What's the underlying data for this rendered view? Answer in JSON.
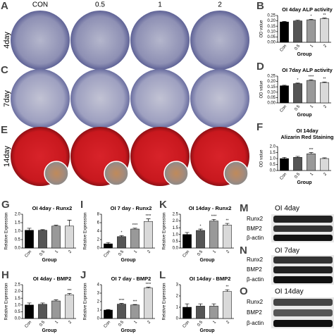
{
  "figure": {
    "letters": [
      "A",
      "C",
      "E",
      "M",
      "N",
      "O"
    ],
    "columns": [
      "CON",
      "0.5",
      "1",
      "2"
    ],
    "rows": [
      "4day",
      "7day",
      "14day"
    ]
  },
  "blots": [
    {
      "title": "OI  4day",
      "bands": [
        "Runx2",
        "BMP2",
        "β-actin"
      ]
    },
    {
      "title": "OI  7day",
      "bands": [
        "Runx2",
        "BMP2",
        "β-actin"
      ]
    },
    {
      "title": "OI  14day",
      "bands": [
        "Runx2",
        "BMP2",
        "β-actin"
      ]
    }
  ],
  "chart_data": [
    {
      "type": "bar",
      "panel": "B",
      "title": "OI 4day ALP activity",
      "ylabel": "OD value",
      "xlabel": "Group",
      "categories": [
        "Con",
        "0.5",
        "1",
        "2"
      ],
      "values": [
        0.19,
        0.2,
        0.21,
        0.22
      ],
      "errors": [
        0.005,
        0.006,
        0.005,
        0.006
      ],
      "significance": [
        null,
        null,
        "*",
        "**"
      ],
      "colors": [
        "#000000",
        "#555555",
        "#999999",
        "#d9d9d9"
      ],
      "ylim": [
        0,
        0.25
      ],
      "yticks": [
        {
          "value": 0,
          "label": "0.00"
        },
        {
          "value": 0.05,
          "label": "0.05"
        },
        {
          "value": 0.1,
          "label": "0.10"
        },
        {
          "value": 0.15,
          "label": "0.15"
        },
        {
          "value": 0.2,
          "label": "0.20"
        },
        {
          "value": 0.25,
          "label": "0.25"
        }
      ]
    },
    {
      "type": "bar",
      "panel": "D",
      "title": "OI 7day ALP activity",
      "ylabel": "OD value",
      "xlabel": "Group",
      "categories": [
        "Con",
        "0.5",
        "1",
        "2"
      ],
      "values": [
        0.16,
        0.18,
        0.21,
        0.19
      ],
      "errors": [
        0.005,
        0.005,
        0.006,
        0.005
      ],
      "significance": [
        null,
        "*",
        "****",
        "**"
      ],
      "colors": [
        "#000000",
        "#555555",
        "#999999",
        "#d9d9d9"
      ],
      "ylim": [
        0,
        0.25
      ],
      "yticks": [
        {
          "value": 0,
          "label": "0.00"
        },
        {
          "value": 0.05,
          "label": "0.05"
        },
        {
          "value": 0.1,
          "label": "0.10"
        },
        {
          "value": 0.15,
          "label": "0.15"
        },
        {
          "value": 0.2,
          "label": "0.20"
        },
        {
          "value": 0.25,
          "label": "0.25"
        }
      ]
    },
    {
      "type": "bar",
      "panel": "F",
      "title": "OI 14day",
      "subtitle": "Alizarin Red Staining",
      "ylabel": "OD value",
      "xlabel": "Group",
      "categories": [
        "Con",
        "0.5",
        "1",
        "2"
      ],
      "values": [
        1.0,
        1.1,
        1.4,
        1.0
      ],
      "errors": [
        0.1,
        0.08,
        0.1,
        0.06
      ],
      "significance": [
        null,
        null,
        "***",
        null
      ],
      "colors": [
        "#000000",
        "#555555",
        "#999999",
        "#d9d9d9"
      ],
      "ylim": [
        0,
        2
      ],
      "yticks": [
        {
          "value": 0,
          "label": "0.0"
        },
        {
          "value": 0.5,
          "label": "0.5"
        },
        {
          "value": 1,
          "label": "1.0"
        },
        {
          "value": 1.5,
          "label": "1.5"
        },
        {
          "value": 2,
          "label": "2.0"
        }
      ]
    },
    {
      "type": "bar",
      "panel": "G",
      "title": "OI 4day - Runx2",
      "ylabel": "Relative Expression",
      "xlabel": "Group",
      "categories": [
        "Con",
        "0.5",
        "1",
        "2"
      ],
      "values": [
        1.05,
        1.05,
        1.3,
        1.3
      ],
      "errors": [
        0.12,
        0.04,
        0.05,
        0.35
      ],
      "significance": [
        null,
        null,
        null,
        null
      ],
      "colors": [
        "#000000",
        "#555555",
        "#999999",
        "#d9d9d9"
      ],
      "ylim": [
        0,
        2
      ],
      "yticks": [
        {
          "value": 0,
          "label": "0.0"
        },
        {
          "value": 0.5,
          "label": "0.5"
        },
        {
          "value": 1,
          "label": "1.0"
        },
        {
          "value": 1.5,
          "label": "1.5"
        },
        {
          "value": 2,
          "label": "2.0"
        }
      ]
    },
    {
      "type": "bar",
      "panel": "I",
      "title": "OI 7 day - Runx2",
      "ylabel": "Relative Expression",
      "xlabel": "Group",
      "categories": [
        "Con",
        "0.5",
        "1",
        "2"
      ],
      "values": [
        1.0,
        2.7,
        4.5,
        6.3
      ],
      "errors": [
        0.3,
        0.25,
        0.2,
        0.6
      ],
      "significance": [
        null,
        "*",
        "****",
        "****"
      ],
      "colors": [
        "#000000",
        "#555555",
        "#999999",
        "#d9d9d9"
      ],
      "ylim": [
        0,
        8
      ],
      "yticks": [
        0,
        2,
        4,
        6,
        8
      ]
    },
    {
      "type": "bar",
      "panel": "K",
      "title": "OI 14day - Runx2",
      "ylabel": "Relative Expression",
      "xlabel": "Group",
      "categories": [
        "Con",
        "0.5",
        "1",
        "2"
      ],
      "values": [
        1.0,
        1.3,
        2.0,
        1.7
      ],
      "errors": [
        0.15,
        0.1,
        0.12,
        0.12
      ],
      "significance": [
        null,
        "*",
        "****",
        "**"
      ],
      "colors": [
        "#000000",
        "#555555",
        "#999999",
        "#d9d9d9"
      ],
      "ylim": [
        0,
        2.5
      ],
      "yticks": [
        {
          "value": 0,
          "label": "0.0"
        },
        {
          "value": 0.5,
          "label": "0.5"
        },
        {
          "value": 1,
          "label": "1.0"
        },
        {
          "value": 1.5,
          "label": "1.5"
        },
        {
          "value": 2,
          "label": "2.0"
        },
        {
          "value": 2.5,
          "label": "2.5"
        }
      ]
    },
    {
      "type": "bar",
      "panel": "H",
      "title": "OI 4day - BMP2",
      "ylabel": "Relative Expression",
      "xlabel": "Group",
      "categories": [
        "Con",
        "0.5",
        "1",
        "2"
      ],
      "values": [
        1.0,
        1.05,
        1.3,
        1.75
      ],
      "errors": [
        0.15,
        0.1,
        0.08,
        0.1
      ],
      "significance": [
        null,
        null,
        null,
        "***"
      ],
      "colors": [
        "#000000",
        "#555555",
        "#999999",
        "#d9d9d9"
      ],
      "ylim": [
        0,
        2.5
      ],
      "yticks": [
        {
          "value": 0,
          "label": "0.0"
        },
        {
          "value": 0.5,
          "label": "0.5"
        },
        {
          "value": 1,
          "label": "1.0"
        },
        {
          "value": 1.5,
          "label": "1.5"
        },
        {
          "value": 2,
          "label": "2.0"
        },
        {
          "value": 2.5,
          "label": "2.5"
        }
      ]
    },
    {
      "type": "bar",
      "panel": "J",
      "title": "OI 7 day - BMP2",
      "ylabel": "Relative Expression",
      "xlabel": "Group",
      "categories": [
        "Con",
        "0.5",
        "1",
        "2"
      ],
      "values": [
        1.0,
        1.7,
        1.6,
        3.6
      ],
      "errors": [
        0.06,
        0.08,
        0.06,
        0.1
      ],
      "significance": [
        null,
        "****",
        "***",
        "****"
      ],
      "colors": [
        "#000000",
        "#555555",
        "#999999",
        "#d9d9d9"
      ],
      "ylim": [
        0,
        4
      ],
      "yticks": [
        0,
        1,
        2,
        3,
        4
      ]
    },
    {
      "type": "bar",
      "panel": "L",
      "title": "OI 14day - BMP2",
      "ylabel": "Relative Expression",
      "xlabel": "Group",
      "categories": [
        "Con",
        "0.5",
        "1",
        "2"
      ],
      "values": [
        1.0,
        1.1,
        1.1,
        2.4
      ],
      "errors": [
        0.3,
        0.2,
        0.2,
        0.15
      ],
      "significance": [
        null,
        null,
        null,
        "**"
      ],
      "colors": [
        "#000000",
        "#555555",
        "#999999",
        "#d9d9d9"
      ],
      "ylim": [
        0,
        3
      ],
      "yticks": [
        0,
        1,
        2,
        3
      ]
    }
  ]
}
